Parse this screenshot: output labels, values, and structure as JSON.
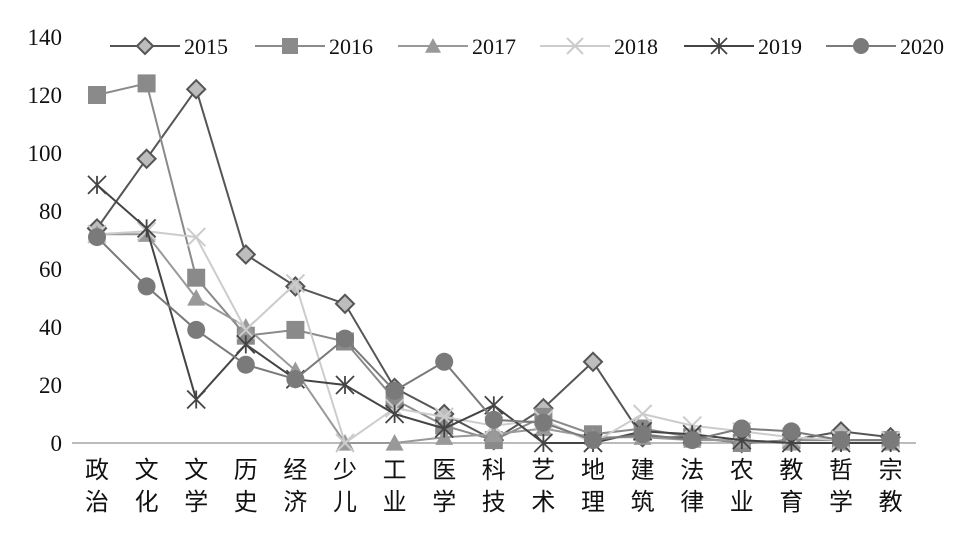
{
  "chart_data": {
    "type": "line",
    "title": "",
    "xlabel": "",
    "ylabel": "",
    "ylim": [
      0,
      140
    ],
    "yticks": [
      0,
      20,
      40,
      60,
      80,
      100,
      120,
      140
    ],
    "grid": false,
    "legend_position": "top",
    "categories": [
      "政治",
      "文化",
      "文学",
      "历史",
      "经济",
      "少儿",
      "工业",
      "医学",
      "科技",
      "艺术",
      "地理",
      "建筑",
      "法律",
      "农业",
      "教育",
      "哲学",
      "宗教"
    ],
    "series": [
      {
        "name": "2015",
        "marker": "diamond",
        "color": "#555555",
        "values": [
          74,
          98,
          122,
          65,
          54,
          48,
          19,
          10,
          1,
          12,
          28,
          2,
          2,
          0,
          1,
          4,
          2
        ]
      },
      {
        "name": "2016",
        "marker": "square",
        "color": "#8a8a8a",
        "values": [
          120,
          124,
          57,
          37,
          39,
          35,
          15,
          6,
          1,
          9,
          3,
          5,
          2,
          0,
          1,
          1,
          1
        ]
      },
      {
        "name": "2017",
        "marker": "triangle",
        "color": "#999999",
        "values": [
          72,
          72,
          50,
          40,
          25,
          0,
          0,
          2,
          3,
          5,
          2,
          2,
          1,
          1,
          0,
          0,
          0
        ]
      },
      {
        "name": "2018",
        "marker": "x",
        "color": "#cccccc",
        "values": [
          72,
          73,
          71,
          39,
          55,
          0,
          12,
          9,
          6,
          8,
          0,
          10,
          6,
          4,
          2,
          1,
          1
        ]
      },
      {
        "name": "2019",
        "marker": "asterisk",
        "color": "#444444",
        "values": [
          89,
          74,
          15,
          34,
          22,
          20,
          10,
          5,
          13,
          0,
          0,
          4,
          3,
          1,
          0,
          0,
          0
        ]
      },
      {
        "name": "2020",
        "marker": "circle",
        "color": "#7a7a7a",
        "values": [
          71,
          54,
          39,
          27,
          22,
          36,
          18,
          28,
          8,
          7,
          1,
          3,
          1,
          5,
          4,
          1,
          1
        ]
      }
    ]
  }
}
